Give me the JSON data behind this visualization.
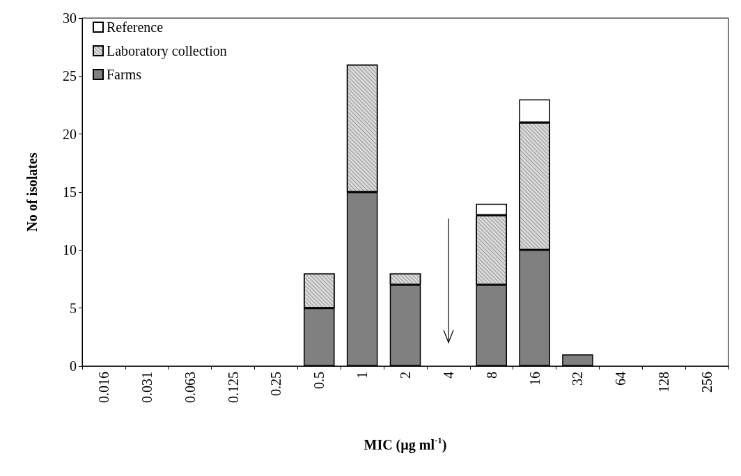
{
  "chart_data": {
    "type": "bar",
    "stacked": true,
    "xlabel": "MIC (µg ml$^{-1}$)",
    "ylabel": "No of isolates",
    "categories": [
      "0.016",
      "0.031",
      "0.063",
      "0.125",
      "0.25",
      "0.5",
      "1",
      "2",
      "4",
      "8",
      "16",
      "32",
      "64",
      "128",
      "256"
    ],
    "series": [
      {
        "name": "Farms",
        "color": "#808080",
        "values": [
          0,
          0,
          0,
          0,
          0,
          5,
          15,
          7,
          0,
          7,
          10,
          1,
          0,
          0,
          0
        ]
      },
      {
        "name": "Laboratory collection",
        "color": "#d9d9d9",
        "values": [
          0,
          0,
          0,
          0,
          0,
          3,
          11,
          1,
          0,
          6,
          11,
          0,
          0,
          0,
          0
        ]
      },
      {
        "name": "Reference",
        "color": "#ffffff",
        "values": [
          0,
          0,
          0,
          0,
          0,
          0,
          0,
          0,
          0,
          1,
          2,
          0,
          0,
          0,
          0
        ]
      }
    ],
    "ylim": [
      0,
      30
    ],
    "yticks": [
      0,
      5,
      10,
      15,
      20,
      25,
      30
    ],
    "legend": "top left",
    "grid": false
  }
}
